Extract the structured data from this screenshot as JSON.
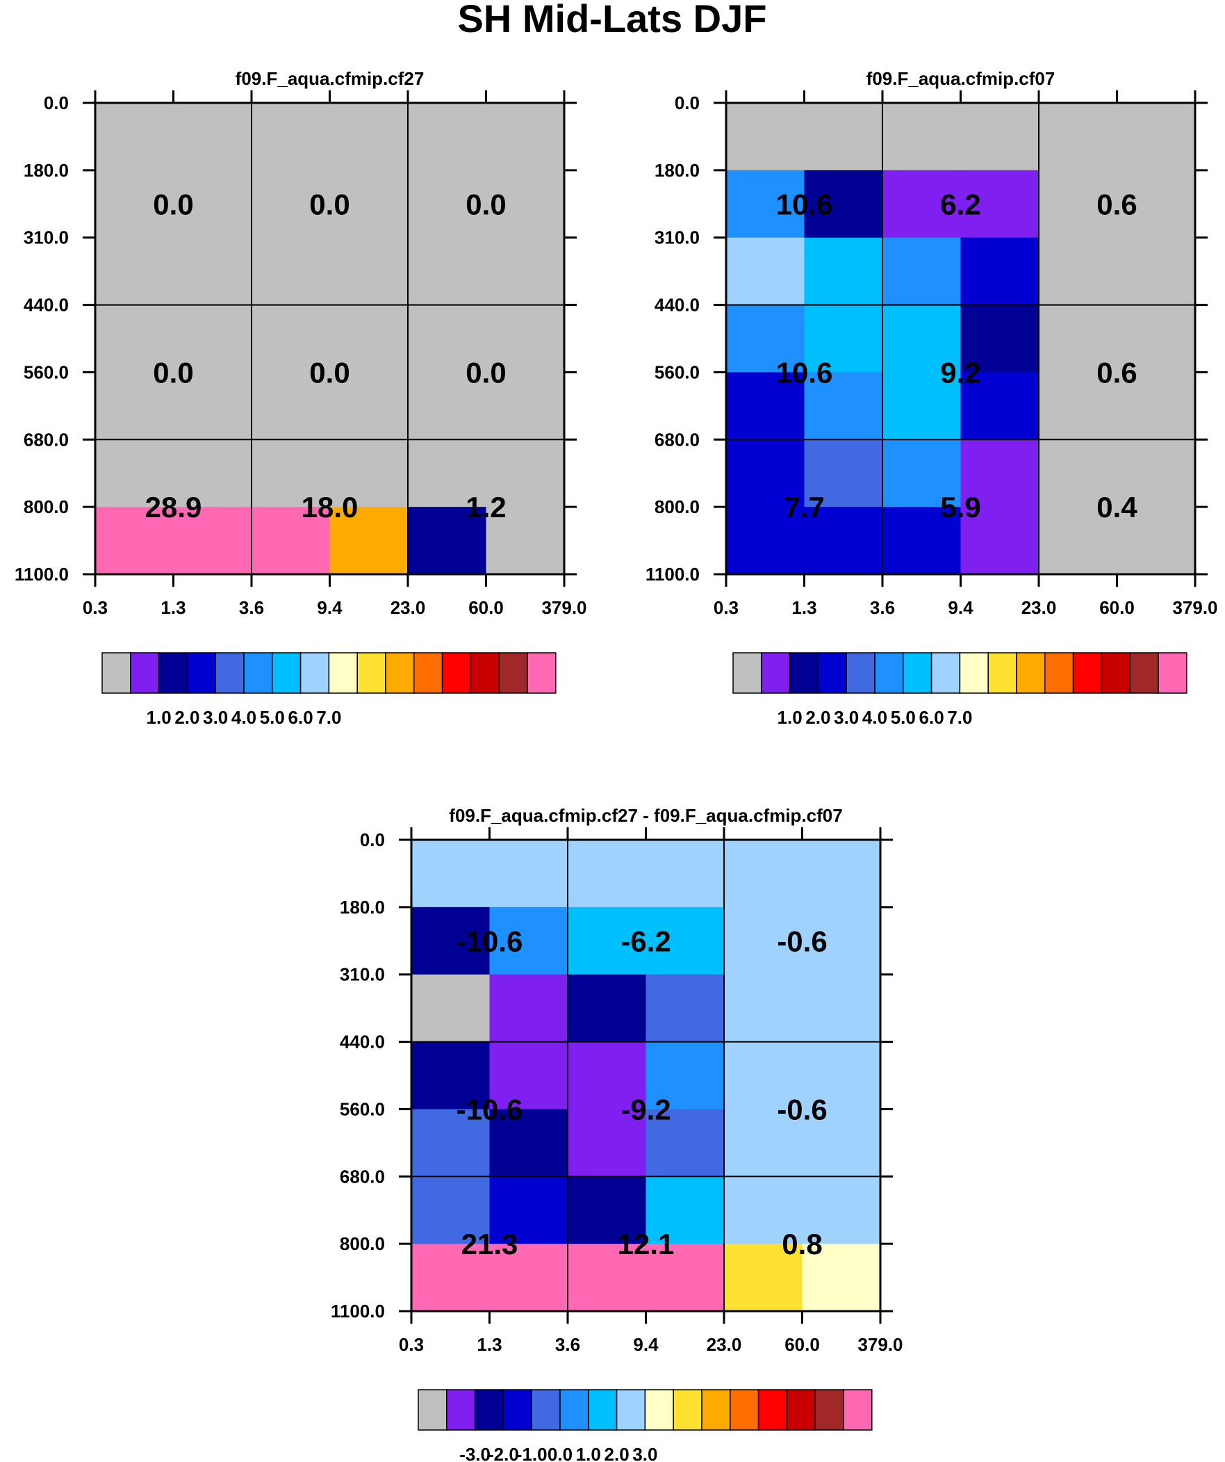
{
  "title": "SH Mid-Lats DJF",
  "colors": {
    "scale": [
      "#c0c0c0",
      "#8020f0",
      "#000094",
      "#0000d0",
      "#4169e1",
      "#1e90ff",
      "#00bfff",
      "#a0d2ff",
      "#ffffc8",
      "#ffe132",
      "#ffaa00",
      "#ff6e00",
      "#ff0000",
      "#c80000",
      "#a02828",
      "#ff69b4"
    ],
    "background": "#ffffff",
    "grid": "#000000"
  },
  "chart_data": [
    {
      "type": "heatmap",
      "title": "f09.F_aqua.cfmip.cf27",
      "x_tick_labels": [
        "0.3",
        "1.3",
        "3.6",
        "9.4",
        "23.0",
        "60.0",
        "379.0"
      ],
      "y_tick_labels": [
        "0.0",
        "180.0",
        "310.0",
        "440.0",
        "560.0",
        "680.0",
        "800.0",
        "1100.0"
      ],
      "cell_color_index": [
        [
          0,
          0,
          0,
          0,
          0,
          0
        ],
        [
          0,
          0,
          0,
          0,
          0,
          0
        ],
        [
          0,
          0,
          0,
          0,
          0,
          0
        ],
        [
          0,
          0,
          0,
          0,
          0,
          0
        ],
        [
          0,
          0,
          0,
          0,
          0,
          0
        ],
        [
          0,
          0,
          0,
          0,
          0,
          0
        ],
        [
          15,
          15,
          15,
          10,
          2,
          0
        ]
      ],
      "grid_x_tick_index": [
        2,
        4
      ],
      "grid_y_tick_index": [
        3,
        5
      ],
      "box_labels": [
        [
          "0.0",
          "0.0",
          "0.0"
        ],
        [
          "0.0",
          "0.0",
          "0.0"
        ],
        [
          "28.9",
          "18.0",
          "1.2"
        ]
      ],
      "colorbar": {
        "labels": [
          "1.0",
          "2.0",
          "3.0",
          "4.0",
          "5.0",
          "6.0",
          "7.0"
        ]
      }
    },
    {
      "type": "heatmap",
      "title": "f09.F_aqua.cfmip.cf07",
      "x_tick_labels": [
        "0.3",
        "1.3",
        "3.6",
        "9.4",
        "23.0",
        "60.0",
        "379.0"
      ],
      "y_tick_labels": [
        "0.0",
        "180.0",
        "310.0",
        "440.0",
        "560.0",
        "680.0",
        "800.0",
        "1100.0"
      ],
      "cell_color_index": [
        [
          0,
          0,
          0,
          0,
          0,
          0
        ],
        [
          5,
          2,
          1,
          1,
          0,
          0
        ],
        [
          7,
          6,
          5,
          3,
          0,
          0
        ],
        [
          5,
          6,
          6,
          2,
          0,
          0
        ],
        [
          3,
          5,
          6,
          3,
          0,
          0
        ],
        [
          3,
          4,
          5,
          1,
          0,
          0
        ],
        [
          3,
          3,
          3,
          1,
          0,
          0
        ]
      ],
      "grid_x_tick_index": [
        2,
        4
      ],
      "grid_y_tick_index": [
        3,
        5
      ],
      "box_labels": [
        [
          "10.6",
          "6.2",
          "0.6"
        ],
        [
          "10.6",
          "9.2",
          "0.6"
        ],
        [
          "7.7",
          "5.9",
          "0.4"
        ]
      ],
      "colorbar": {
        "labels": [
          "1.0",
          "2.0",
          "3.0",
          "4.0",
          "5.0",
          "6.0",
          "7.0"
        ]
      }
    },
    {
      "type": "heatmap",
      "title": "f09.F_aqua.cfmip.cf27 - f09.F_aqua.cfmip.cf07",
      "x_tick_labels": [
        "0.3",
        "1.3",
        "3.6",
        "9.4",
        "23.0",
        "60.0",
        "379.0"
      ],
      "y_tick_labels": [
        "0.0",
        "180.0",
        "310.0",
        "440.0",
        "560.0",
        "680.0",
        "800.0",
        "1100.0"
      ],
      "cell_color_index": [
        [
          7,
          7,
          7,
          7,
          7,
          7
        ],
        [
          2,
          5,
          6,
          6,
          7,
          7
        ],
        [
          0,
          1,
          2,
          4,
          7,
          7
        ],
        [
          2,
          1,
          1,
          5,
          7,
          7
        ],
        [
          4,
          2,
          1,
          4,
          7,
          7
        ],
        [
          4,
          3,
          2,
          6,
          7,
          7
        ],
        [
          15,
          15,
          15,
          15,
          9,
          8
        ]
      ],
      "grid_x_tick_index": [
        2,
        4
      ],
      "grid_y_tick_index": [
        3,
        5
      ],
      "box_labels": [
        [
          "-10.6",
          "-6.2",
          "-0.6"
        ],
        [
          "-10.6",
          "-9.2",
          "-0.6"
        ],
        [
          "21.3",
          "12.1",
          "0.8"
        ]
      ],
      "colorbar": {
        "labels": [
          "-3.0",
          "-2.0",
          "-1.0",
          "0.0",
          "1.0",
          "2.0",
          "3.0"
        ]
      }
    }
  ]
}
